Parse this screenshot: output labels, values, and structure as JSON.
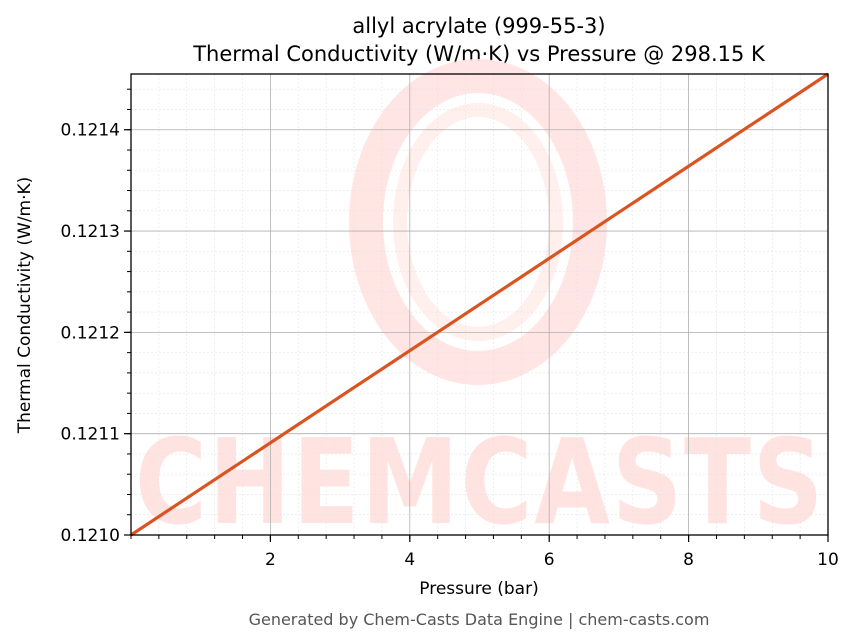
{
  "chart_data": {
    "type": "line",
    "title": "allyl acrylate (999-55-3)",
    "subtitle": "Thermal Conductivity (W/m·K) vs Pressure @ 298.15 K",
    "xlabel": "Pressure (bar)",
    "ylabel": "Thermal Conductivity (W/m·K)",
    "xlim": [
      0.0,
      10.0
    ],
    "ylim": [
      0.121,
      0.121455
    ],
    "x_ticks": [
      2,
      4,
      6,
      8,
      10
    ],
    "x_tick_labels": [
      "2",
      "4",
      "6",
      "8",
      "10"
    ],
    "y_ticks": [
      0.121,
      0.1211,
      0.1212,
      0.1213,
      0.1214
    ],
    "y_tick_labels": [
      "0.1210",
      "0.1211",
      "0.1212",
      "0.1213",
      "0.1214"
    ],
    "grid": true,
    "series": [
      {
        "color": "#d95420",
        "x": [
          0.0,
          10.0
        ],
        "y": [
          0.121,
          0.121455
        ]
      }
    ]
  },
  "watermark": {
    "text": "CHEMCASTS",
    "color": "#ffe3e0"
  },
  "footer": "Generated by Chem-Casts Data Engine | chem-casts.com"
}
